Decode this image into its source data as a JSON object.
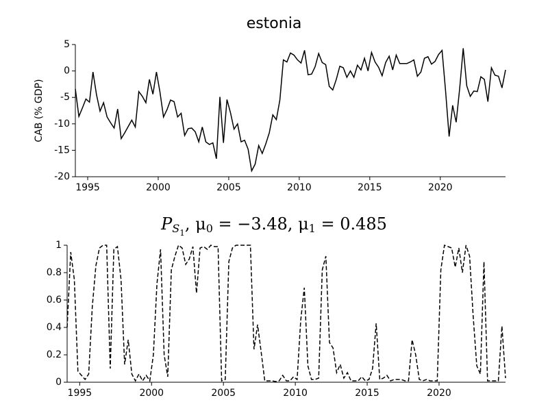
{
  "chart_data": [
    {
      "type": "line",
      "title": "estonia",
      "ylabel": "CAB (% GDP)",
      "x": [
        1994.125,
        1994.375,
        1994.625,
        1994.875,
        1995.125,
        1995.375,
        1995.625,
        1995.875,
        1996.125,
        1996.375,
        1996.625,
        1996.875,
        1997.125,
        1997.375,
        1997.625,
        1997.875,
        1998.125,
        1998.375,
        1998.625,
        1998.875,
        1999.125,
        1999.375,
        1999.625,
        1999.875,
        2000.125,
        2000.375,
        2000.625,
        2000.875,
        2001.125,
        2001.375,
        2001.625,
        2001.875,
        2002.125,
        2002.375,
        2002.625,
        2002.875,
        2003.125,
        2003.375,
        2003.625,
        2003.875,
        2004.125,
        2004.375,
        2004.625,
        2004.875,
        2005.125,
        2005.375,
        2005.625,
        2005.875,
        2006.125,
        2006.375,
        2006.625,
        2006.875,
        2007.125,
        2007.375,
        2007.625,
        2007.875,
        2008.125,
        2008.375,
        2008.625,
        2008.875,
        2009.125,
        2009.375,
        2009.625,
        2009.875,
        2010.125,
        2010.375,
        2010.625,
        2010.875,
        2011.125,
        2011.375,
        2011.625,
        2011.875,
        2012.125,
        2012.375,
        2012.625,
        2012.875,
        2013.125,
        2013.375,
        2013.625,
        2013.875,
        2014.125,
        2014.375,
        2014.625,
        2014.875,
        2015.125,
        2015.375,
        2015.625,
        2015.875,
        2016.125,
        2016.375,
        2016.625,
        2016.875,
        2017.125,
        2017.375,
        2017.625,
        2017.875,
        2018.125,
        2018.375,
        2018.625,
        2018.875,
        2019.125,
        2019.375,
        2019.625,
        2019.875,
        2020.125,
        2020.375,
        2020.625,
        2020.875,
        2021.125,
        2021.375,
        2021.625,
        2021.875,
        2022.125,
        2022.375,
        2022.625,
        2022.875,
        2023.125,
        2023.375,
        2023.625,
        2023.875,
        2024.125,
        2024.375,
        2024.625
      ],
      "series": [
        {
          "color": "#000000",
          "dashed": false,
          "values": [
            -3.4,
            -8.6,
            -7,
            -5.3,
            -5.9,
            -0.2,
            -4.5,
            -7.6,
            -6,
            -8.7,
            -9.8,
            -10.8,
            -7.2,
            -12.8,
            -11.7,
            -10.5,
            -9.3,
            -10.6,
            -3.9,
            -4.8,
            -6,
            -1.6,
            -4.4,
            -0.2,
            -4,
            -8.7,
            -7.3,
            -5.5,
            -5.8,
            -8.7,
            -8,
            -12.2,
            -10.9,
            -10.8,
            -11.5,
            -13.4,
            -10.6,
            -13.4,
            -13.9,
            -13.6,
            -16.6,
            -4.9,
            -13.6,
            -5.4,
            -7.9,
            -11,
            -10,
            -13.4,
            -13.1,
            -14.8,
            -18.9,
            -17.6,
            -14.1,
            -15.6,
            -13.8,
            -11.7,
            -8.3,
            -9.2,
            -5.5,
            2.1,
            1.7,
            3.4,
            3,
            2.1,
            1.5,
            3.9,
            -0.7,
            -0.6,
            0.8,
            3.3,
            1.6,
            1.2,
            -2.9,
            -3.6,
            -1.6,
            0.9,
            0.6,
            -1.2,
            0,
            -1.2,
            1.1,
            0.2,
            2.4,
            0,
            3.5,
            1.7,
            0.7,
            -0.9,
            1.6,
            2.8,
            0.2,
            3,
            1.4,
            1.4,
            1.4,
            1.7,
            2.1,
            -1,
            -0.2,
            2.4,
            2.7,
            1.3,
            1.8,
            3.1,
            3.9,
            -3.8,
            -12.4,
            -6.5,
            -9.7,
            -3.3,
            4.3,
            -2.8,
            -4.8,
            -3.8,
            -3.9,
            -1.1,
            -1.6,
            -5.8,
            0.6,
            -0.8,
            -1,
            -3.2,
            0.2
          ]
        }
      ],
      "xlim": [
        1994.125,
        2024.625
      ],
      "xticks": [
        1995,
        2000,
        2005,
        2010,
        2015,
        2020
      ],
      "ylim": [
        -20,
        5
      ],
      "yticks": [
        -20,
        -15,
        -10,
        -5,
        0,
        5
      ]
    },
    {
      "type": "line",
      "title_parts": [
        {
          "text": "P",
          "sub": 0
        },
        {
          "text": "S",
          "sub": 1
        },
        {
          "text": "1",
          "sub": 2
        },
        {
          "text": ", ",
          "sub": 0
        },
        {
          "text": "μ",
          "sub": 0
        },
        {
          "text": "0",
          "sub": 1
        },
        {
          "text": " = −3.48, ",
          "sub": 0
        },
        {
          "text": "μ",
          "sub": 0
        },
        {
          "text": "1",
          "sub": 1
        },
        {
          "text": " = 0.485",
          "sub": 0
        }
      ],
      "x": [
        1994.125,
        1994.375,
        1994.625,
        1994.875,
        1995.125,
        1995.375,
        1995.625,
        1995.875,
        1996.125,
        1996.375,
        1996.625,
        1996.875,
        1997.125,
        1997.375,
        1997.625,
        1997.875,
        1998.125,
        1998.375,
        1998.625,
        1998.875,
        1999.125,
        1999.375,
        1999.625,
        1999.875,
        2000.125,
        2000.375,
        2000.625,
        2000.875,
        2001.125,
        2001.375,
        2001.625,
        2001.875,
        2002.125,
        2002.375,
        2002.625,
        2002.875,
        2003.125,
        2003.375,
        2003.625,
        2003.875,
        2004.125,
        2004.375,
        2004.625,
        2004.875,
        2005.125,
        2005.375,
        2005.625,
        2005.875,
        2006.125,
        2006.375,
        2006.625,
        2006.875,
        2007.125,
        2007.375,
        2007.625,
        2007.875,
        2008.125,
        2008.375,
        2008.625,
        2008.875,
        2009.125,
        2009.375,
        2009.625,
        2009.875,
        2010.125,
        2010.375,
        2010.625,
        2010.875,
        2011.125,
        2011.375,
        2011.625,
        2011.875,
        2012.125,
        2012.375,
        2012.625,
        2012.875,
        2013.125,
        2013.375,
        2013.625,
        2013.875,
        2014.125,
        2014.375,
        2014.625,
        2014.875,
        2015.125,
        2015.375,
        2015.625,
        2015.875,
        2016.125,
        2016.375,
        2016.625,
        2016.875,
        2017.125,
        2017.375,
        2017.625,
        2017.875,
        2018.125,
        2018.375,
        2018.625,
        2018.875,
        2019.125,
        2019.375,
        2019.625,
        2019.875,
        2020.125,
        2020.375,
        2020.625,
        2020.875,
        2021.125,
        2021.375,
        2021.625,
        2021.875,
        2022.125,
        2022.375,
        2022.625,
        2022.875,
        2023.125,
        2023.375,
        2023.625,
        2023.875,
        2024.125,
        2024.375,
        2024.625
      ],
      "series": [
        {
          "color": "#000000",
          "dashed": true,
          "values": [
            0.4,
            0.95,
            0.75,
            0.08,
            0.05,
            0.02,
            0.06,
            0.55,
            0.85,
            0.98,
            1,
            1,
            0.1,
            0.97,
            0.99,
            0.75,
            0.13,
            0.31,
            0.06,
            0.01,
            0.06,
            0.01,
            0.05,
            0.01,
            0.2,
            0.72,
            0.97,
            0.2,
            0.04,
            0.82,
            0.92,
            1,
            0.98,
            0.86,
            0.9,
            0.99,
            0.65,
            0.98,
            0.99,
            0.97,
            1,
            0.99,
            0.99,
            0.01,
            0.02,
            0.88,
            0.98,
            1,
            1,
            1,
            1,
            1,
            0.24,
            0.42,
            0.22,
            0.01,
            0.01,
            0.01,
            0.005,
            0.01,
            0.05,
            0.01,
            0.01,
            0.04,
            0.02,
            0.45,
            0.69,
            0.12,
            0.02,
            0.02,
            0.03,
            0.82,
            0.92,
            0.29,
            0.25,
            0.07,
            0.13,
            0.03,
            0.07,
            0.01,
            0.01,
            0.01,
            0.04,
            0.01,
            0.02,
            0.1,
            0.43,
            0.02,
            0.03,
            0.05,
            0.01,
            0.02,
            0.02,
            0.02,
            0.01,
            0.01,
            0.31,
            0.2,
            0.02,
            0.01,
            0.02,
            0.01,
            0.01,
            0.01,
            0.82,
            1,
            0.99,
            0.98,
            0.84,
            0.98,
            0.8,
            1,
            0.92,
            0.48,
            0.12,
            0.06,
            0.88,
            0.01,
            0.01,
            0.01,
            0.01,
            0.41,
            0.03
          ]
        }
      ],
      "xlim": [
        1994.125,
        2024.625
      ],
      "xticks": [
        1995,
        2000,
        2005,
        2010,
        2015,
        2020
      ],
      "ylim": [
        0,
        1
      ],
      "yticks": [
        0,
        0.2,
        0.4,
        0.6,
        0.8,
        1
      ]
    }
  ]
}
